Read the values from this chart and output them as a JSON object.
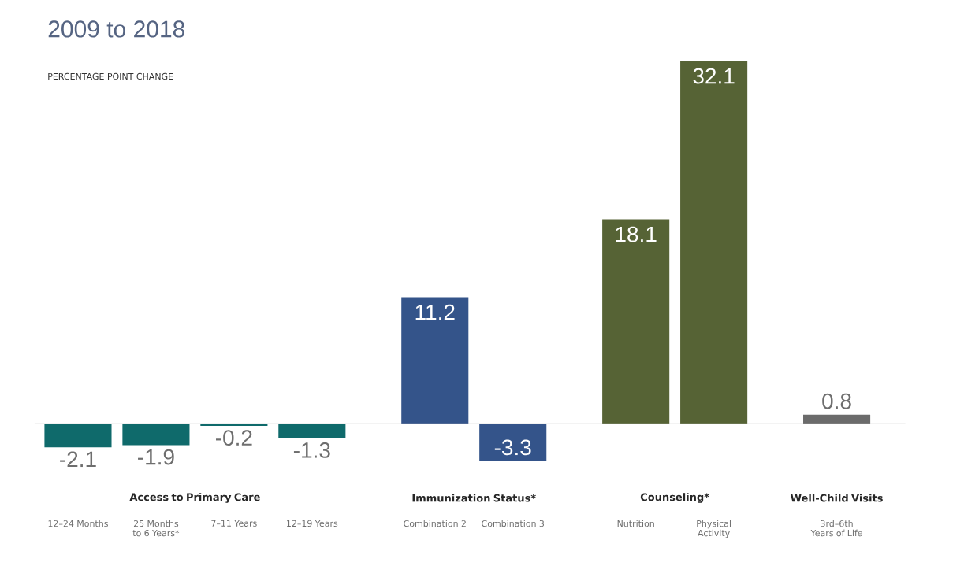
{
  "chart_data": {
    "type": "bar",
    "title": "2009 to 2018",
    "subtitle": "PERCENTAGE POINT CHANGE",
    "categories": [
      "12–24 Months",
      "25 Months to 6 Years*",
      "7–11 Years",
      "12–19 Years",
      "Combination 2",
      "Combination 3",
      "Nutrition",
      "Physical Activity",
      "3rd–6th Years of Life"
    ],
    "values": [
      -2.1,
      -1.9,
      -0.2,
      -1.3,
      11.2,
      -3.3,
      18.1,
      32.1,
      0.8
    ],
    "colors": [
      "#0f6a6b",
      "#0f6a6b",
      "#0f6a6b",
      "#0f6a6b",
      "#34548a",
      "#34548a",
      "#566335",
      "#566335",
      "#6b6b6b"
    ],
    "data_labels": true,
    "annotations": [
      "Access to Primary Care",
      "Immunization Status*",
      "Counseling*",
      "Well-Child Visits"
    ]
  }
}
